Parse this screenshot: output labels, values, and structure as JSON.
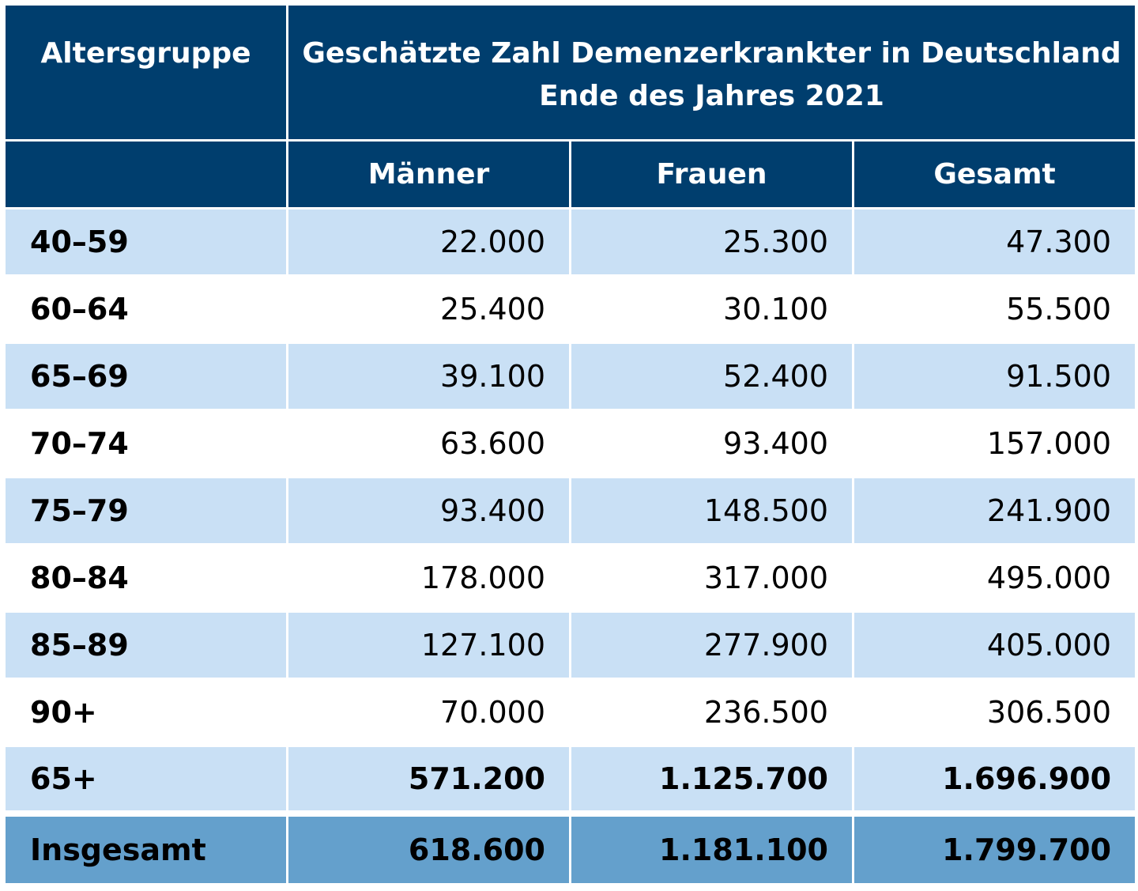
{
  "header": {
    "group_label": "Altersgruppe",
    "title_line1": "Geschätzte Zahl Demenzerkrankter in Deutschland",
    "title_line2": "Ende des Jahres 2021",
    "columns": [
      "Männer",
      "Frauen",
      "Gesamt"
    ]
  },
  "rows": [
    {
      "group": "40–59",
      "men": "22.000",
      "women": "25.300",
      "total": "47.300"
    },
    {
      "group": "60–64",
      "men": "25.400",
      "women": "30.100",
      "total": "55.500"
    },
    {
      "group": "65–69",
      "men": "39.100",
      "women": "52.400",
      "total": "91.500"
    },
    {
      "group": "70–74",
      "men": "63.600",
      "women": "93.400",
      "total": "157.000"
    },
    {
      "group": "75–79",
      "men": "93.400",
      "women": "148.500",
      "total": "241.900"
    },
    {
      "group": "80–84",
      "men": "178.000",
      "women": "317.000",
      "total": "495.000"
    },
    {
      "group": "85–89",
      "men": "127.100",
      "women": "277.900",
      "total": "405.000"
    },
    {
      "group": "90+",
      "men": "70.000",
      "women": "236.500",
      "total": "306.500"
    },
    {
      "group": "65+",
      "men": "571.200",
      "women": "1.125.700",
      "total": "1.696.900"
    },
    {
      "group": "Insgesamt",
      "men": "618.600",
      "women": "1.181.100",
      "total": "1.799.700"
    }
  ],
  "colors": {
    "header_bg": "#003e6e",
    "row_shade": "#c9e0f5",
    "total_row": "#64a0cc"
  }
}
